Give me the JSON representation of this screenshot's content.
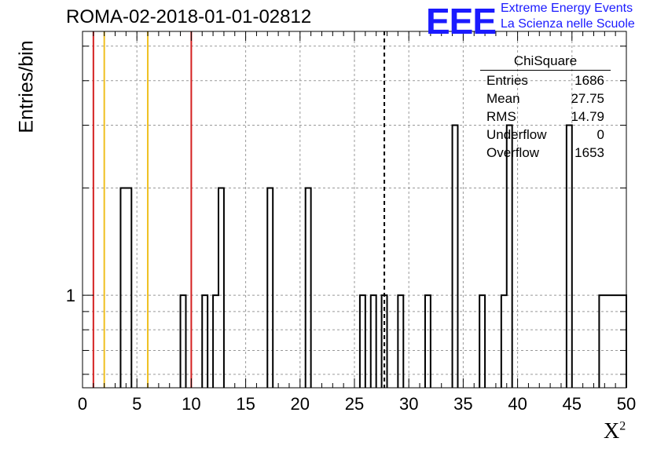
{
  "title": "ROMA-02-2018-01-01-02812",
  "logo": {
    "text": "EEE",
    "line1": "Extreme Energy Events",
    "line2": "La Scienza nelle Scuole",
    "color": "#1a1aff"
  },
  "chart_data": {
    "type": "bar",
    "xlabel": "X",
    "xlabel_sup": "2",
    "ylabel": "Entries/bin",
    "xlim": [
      0,
      50
    ],
    "ylog": true,
    "ylim": [
      0.55,
      5.5
    ],
    "x_ticks": [
      "0",
      "5",
      "10",
      "15",
      "20",
      "25",
      "30",
      "35",
      "40",
      "45",
      "50"
    ],
    "y_ticks": [
      "1"
    ],
    "grid": true,
    "bin_width": 0.5,
    "bins": [
      {
        "x": 3.5,
        "y": 2
      },
      {
        "x": 4.0,
        "y": 2
      },
      {
        "x": 9.0,
        "y": 1
      },
      {
        "x": 11.0,
        "y": 1
      },
      {
        "x": 12.0,
        "y": 1
      },
      {
        "x": 12.5,
        "y": 2
      },
      {
        "x": 17.0,
        "y": 2
      },
      {
        "x": 20.5,
        "y": 2
      },
      {
        "x": 25.5,
        "y": 1
      },
      {
        "x": 26.5,
        "y": 1
      },
      {
        "x": 27.5,
        "y": 1
      },
      {
        "x": 29.0,
        "y": 1
      },
      {
        "x": 31.5,
        "y": 1
      },
      {
        "x": 34.0,
        "y": 3
      },
      {
        "x": 36.5,
        "y": 1
      },
      {
        "x": 38.5,
        "y": 1
      },
      {
        "x": 39.0,
        "y": 3
      },
      {
        "x": 44.5,
        "y": 3
      },
      {
        "x": 47.5,
        "y": 1
      },
      {
        "x": 48.0,
        "y": 1
      },
      {
        "x": 48.5,
        "y": 1
      },
      {
        "x": 49.0,
        "y": 1
      },
      {
        "x": 49.5,
        "y": 1
      }
    ],
    "vlines": [
      {
        "x": 1,
        "color": "#d42020"
      },
      {
        "x": 2,
        "color": "#f0c020"
      },
      {
        "x": 6,
        "color": "#f0c020"
      },
      {
        "x": 10,
        "color": "#d42020"
      }
    ],
    "mean_line": 27.75,
    "stats": {
      "name": "ChiSquare",
      "rows": [
        {
          "label": "Entries",
          "value": "1686"
        },
        {
          "label": "Mean",
          "value": "27.75"
        },
        {
          "label": "RMS",
          "value": "14.79"
        },
        {
          "label": "Underflow",
          "value": "0"
        },
        {
          "label": "Overflow",
          "value": "1653"
        }
      ]
    }
  }
}
